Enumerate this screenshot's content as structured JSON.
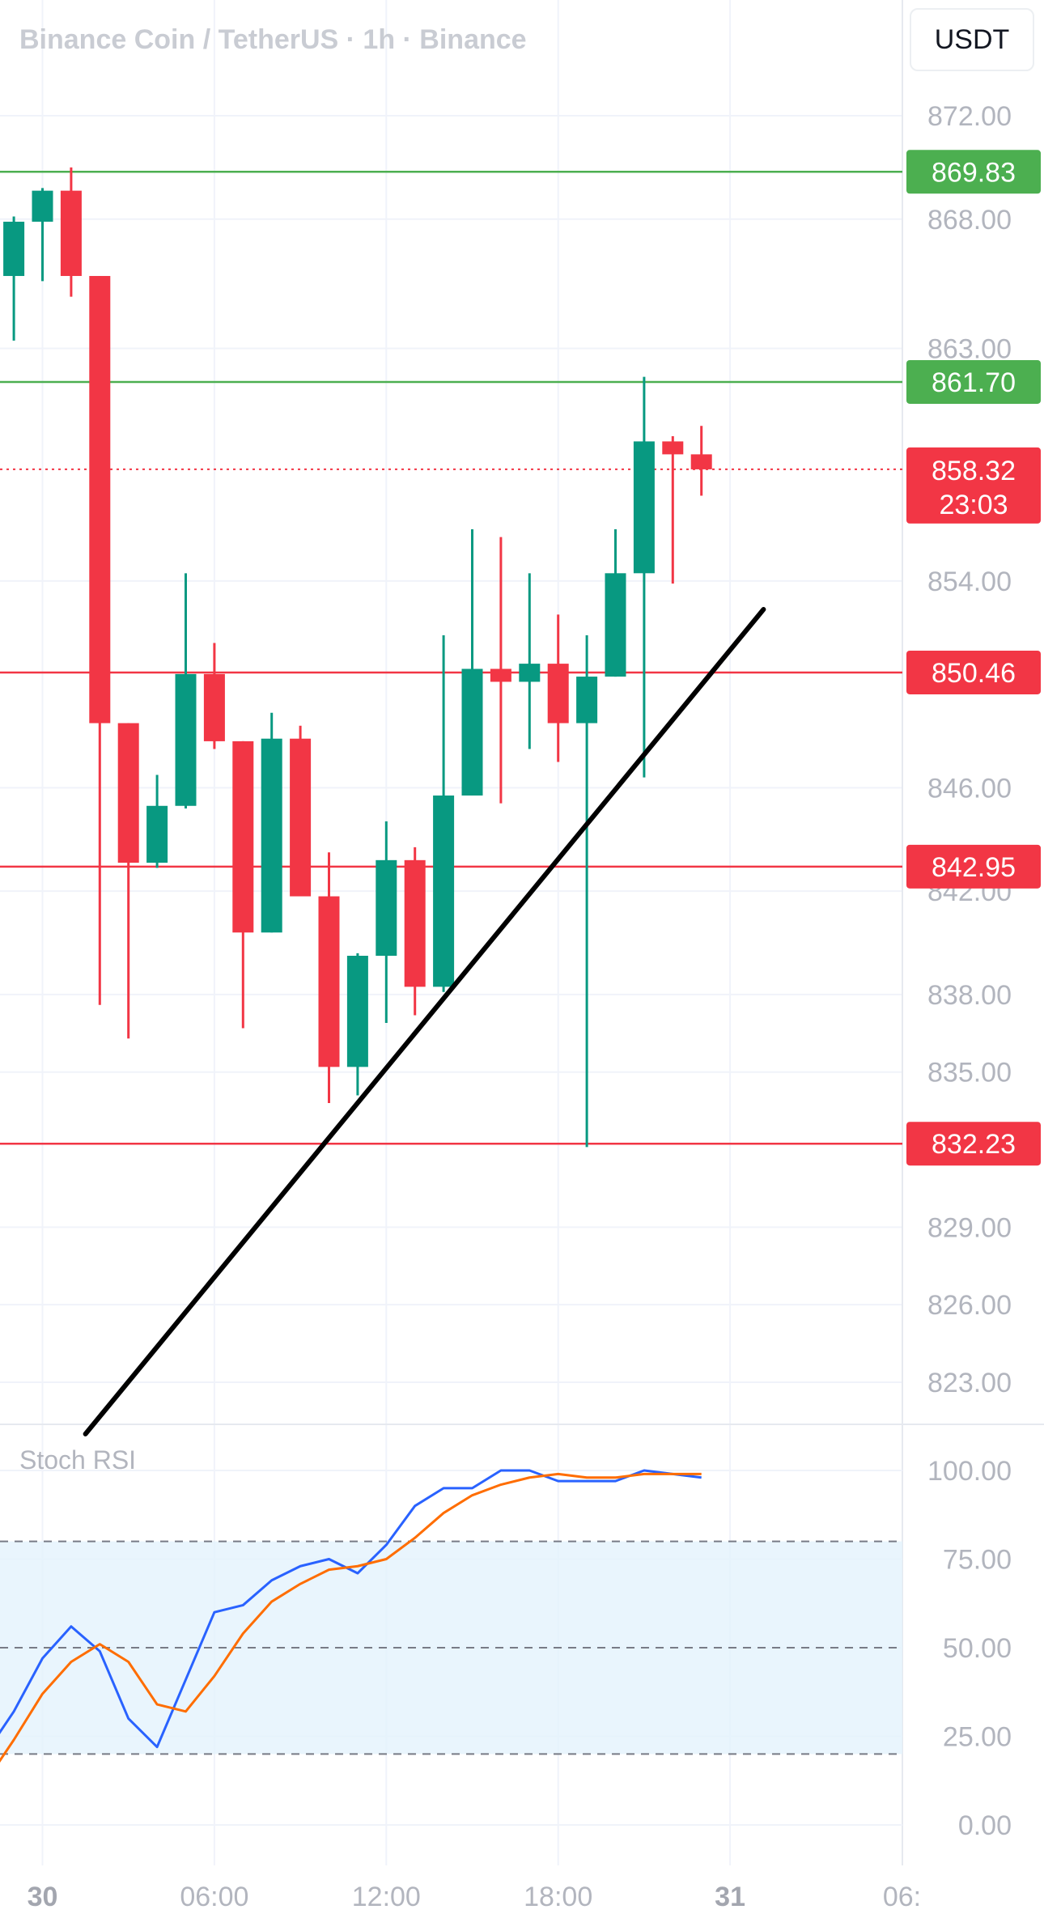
{
  "header": {
    "symbol": "Binance Coin / TetherUS",
    "interval": "1h",
    "exchange": "Binance",
    "title": "Binance Coin / TetherUS · 1h · Binance",
    "currency_button": "USDT"
  },
  "colors": {
    "up": "#089981",
    "down": "#f23645",
    "support_line": "#f23645",
    "resistance_line": "#4caf50",
    "trendline": "#000000",
    "stoch_k": "#2962ff",
    "stoch_d": "#ff6d00",
    "stoch_band_fill": "#e3f2fd",
    "grid": "#f0f3fa",
    "axis_text": "#b2b5be",
    "price_label_text": "#ffffff"
  },
  "chart_data": [
    {
      "type": "candlestick",
      "title": "Binance Coin / TetherUS · 1h · Binance",
      "y_axis": {
        "position": "right",
        "unit": "USDT",
        "ylim": [
          820.5,
          875.5
        ],
        "tick_labels": [
          "872.00",
          "868.00",
          "863.00",
          "854.00",
          "846.00",
          "842.00",
          "838.00",
          "835.00",
          "829.00",
          "826.00",
          "823.00"
        ],
        "grid": true
      },
      "x_axis": {
        "tick_labels": [
          "30",
          "06:00",
          "12:00",
          "18:00",
          "31",
          "06:"
        ],
        "grid": true
      },
      "candles": [
        {
          "t": "29 23:00",
          "o": 865.8,
          "h": 868.1,
          "l": 863.3,
          "c": 867.9
        },
        {
          "t": "30 00:00",
          "o": 867.9,
          "h": 869.2,
          "l": 865.6,
          "c": 869.1
        },
        {
          "t": "30 01:00",
          "o": 869.1,
          "h": 870.0,
          "l": 865.0,
          "c": 865.8
        },
        {
          "t": "30 02:00",
          "o": 865.8,
          "h": 865.8,
          "l": 837.6,
          "c": 848.5
        },
        {
          "t": "30 03:00",
          "o": 848.5,
          "h": 848.5,
          "l": 836.3,
          "c": 843.1
        },
        {
          "t": "30 04:00",
          "o": 843.1,
          "h": 846.5,
          "l": 842.9,
          "c": 845.3
        },
        {
          "t": "30 05:00",
          "o": 845.3,
          "h": 854.3,
          "l": 845.2,
          "c": 850.4
        },
        {
          "t": "30 06:00",
          "o": 850.4,
          "h": 851.6,
          "l": 847.5,
          "c": 847.8
        },
        {
          "t": "30 07:00",
          "o": 847.8,
          "h": 847.8,
          "l": 836.7,
          "c": 840.4
        },
        {
          "t": "30 08:00",
          "o": 840.4,
          "h": 848.9,
          "l": 840.4,
          "c": 847.9
        },
        {
          "t": "30 09:00",
          "o": 847.9,
          "h": 848.4,
          "l": 841.8,
          "c": 841.8
        },
        {
          "t": "30 10:00",
          "o": 841.8,
          "h": 843.5,
          "l": 833.8,
          "c": 835.2
        },
        {
          "t": "30 11:00",
          "o": 835.2,
          "h": 839.6,
          "l": 834.1,
          "c": 839.5
        },
        {
          "t": "30 12:00",
          "o": 839.5,
          "h": 844.7,
          "l": 836.9,
          "c": 843.2
        },
        {
          "t": "30 13:00",
          "o": 843.2,
          "h": 843.7,
          "l": 837.2,
          "c": 838.3
        },
        {
          "t": "30 14:00",
          "o": 838.3,
          "h": 851.9,
          "l": 838.1,
          "c": 845.7
        },
        {
          "t": "30 15:00",
          "o": 845.7,
          "h": 856.0,
          "l": 845.7,
          "c": 850.6
        },
        {
          "t": "30 16:00",
          "o": 850.6,
          "h": 855.7,
          "l": 845.4,
          "c": 850.1
        },
        {
          "t": "30 17:00",
          "o": 850.1,
          "h": 854.3,
          "l": 847.5,
          "c": 850.8
        },
        {
          "t": "30 18:00",
          "o": 850.8,
          "h": 852.7,
          "l": 847.0,
          "c": 848.5
        },
        {
          "t": "30 19:00",
          "o": 848.5,
          "h": 851.9,
          "l": 832.1,
          "c": 850.3
        },
        {
          "t": "30 20:00",
          "o": 850.3,
          "h": 856.0,
          "l": 850.3,
          "c": 854.3
        },
        {
          "t": "30 21:00",
          "o": 854.3,
          "h": 861.9,
          "l": 846.4,
          "c": 859.4
        },
        {
          "t": "30 22:00",
          "o": 859.4,
          "h": 859.6,
          "l": 853.9,
          "c": 858.9
        },
        {
          "t": "30 23:00",
          "o": 858.9,
          "h": 860.0,
          "l": 857.3,
          "c": 858.32
        }
      ],
      "horizontal_lines": [
        {
          "name": "resistance-869",
          "price": 869.83,
          "label": "869.83",
          "kind": "resistance"
        },
        {
          "name": "resistance-861",
          "price": 861.7,
          "label": "861.70",
          "kind": "resistance"
        },
        {
          "name": "support-850",
          "price": 850.46,
          "label": "850.46",
          "kind": "support"
        },
        {
          "name": "support-842",
          "price": 842.95,
          "label": "842.95",
          "kind": "support"
        },
        {
          "name": "support-832",
          "price": 832.23,
          "label": "832.23",
          "kind": "support"
        }
      ],
      "current_price": {
        "price": 858.32,
        "label": "858.32",
        "countdown": "23:03"
      },
      "trendline": {
        "from": {
          "t": "30 01:30",
          "price": 821.0
        },
        "to": {
          "t": "31 01:10",
          "price": 852.9
        }
      }
    },
    {
      "type": "line",
      "title": "Stoch RSI",
      "y_axis": {
        "position": "right",
        "ylim": [
          -2,
          104
        ],
        "tick_labels": [
          "100.00",
          "75.00",
          "50.00",
          "25.00",
          "0.00"
        ],
        "bands": [
          20,
          50,
          80
        ],
        "grid": true
      },
      "x": [
        "29 22:00",
        "29 23:00",
        "30 00:00",
        "30 01:00",
        "30 02:00",
        "30 03:00",
        "30 04:00",
        "30 05:00",
        "30 06:00",
        "30 07:00",
        "30 08:00",
        "30 09:00",
        "30 10:00",
        "30 11:00",
        "30 12:00",
        "30 13:00",
        "30 14:00",
        "30 15:00",
        "30 16:00",
        "30 17:00",
        "30 18:00",
        "30 19:00",
        "30 20:00",
        "30 21:00",
        "30 22:00",
        "30 23:00"
      ],
      "series": [
        {
          "name": "K",
          "values": [
            20,
            32,
            47,
            56,
            49,
            30,
            22,
            41,
            60,
            62,
            69,
            73,
            75,
            71,
            79,
            90,
            95,
            95,
            100,
            100,
            97,
            97,
            97,
            100,
            99,
            98
          ]
        },
        {
          "name": "D",
          "values": [
            12,
            24,
            37,
            46,
            51,
            46,
            34,
            32,
            42,
            54,
            63,
            68,
            72,
            73,
            75,
            81,
            88,
            93,
            96,
            98,
            99,
            98,
            98,
            99,
            99,
            99
          ]
        }
      ]
    }
  ]
}
